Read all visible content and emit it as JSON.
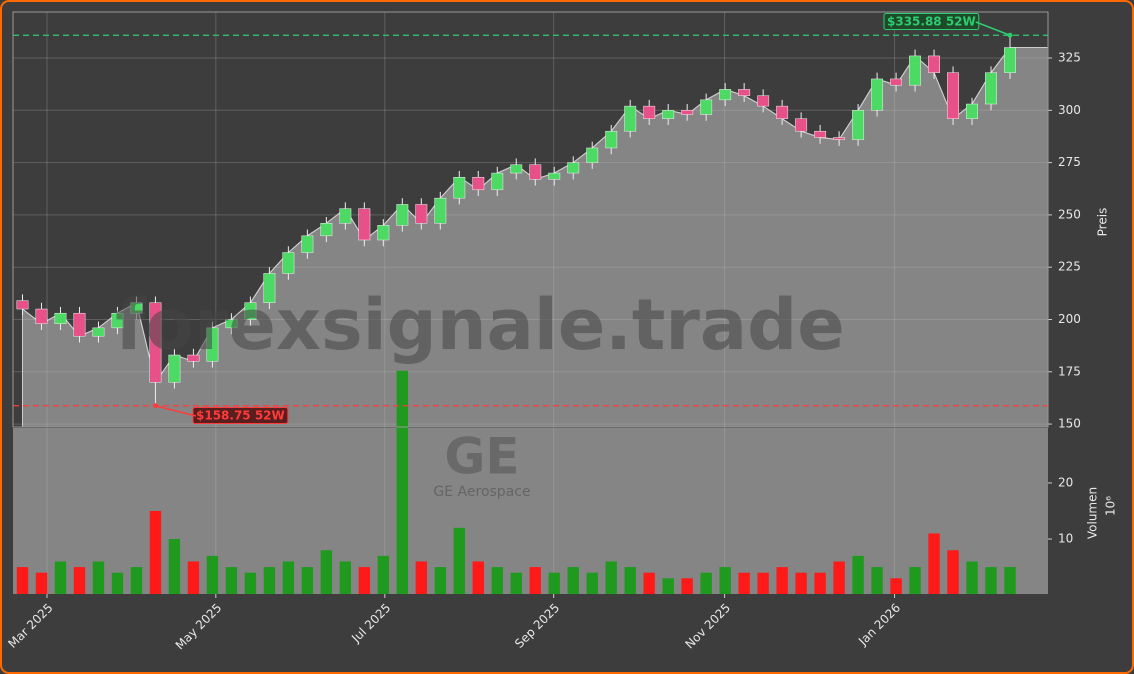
{
  "chart_data": {
    "type": "candlestick",
    "watermark": "forexsignale.trade",
    "ticker": "GE",
    "company": "GE Aerospace",
    "ylabel": "Preis",
    "volume_label": "Volumen",
    "volume_scale_label": "10⁶",
    "x": [
      0,
      1,
      2,
      3,
      4,
      5,
      6,
      7,
      8,
      9,
      10,
      11,
      12,
      13,
      14,
      15,
      16,
      17,
      18,
      19,
      20,
      21,
      22,
      23,
      24,
      25,
      26,
      27,
      28,
      29,
      30,
      31,
      32,
      33,
      34,
      35,
      36,
      37,
      38,
      39,
      40,
      41,
      42,
      43,
      44,
      45,
      46,
      47,
      48,
      49,
      50,
      51,
      52
    ],
    "open": [
      209,
      205,
      198,
      203,
      192,
      196,
      203,
      208,
      170,
      183,
      180,
      196,
      200,
      208,
      222,
      232,
      240,
      246,
      253,
      238,
      245,
      255,
      246,
      258,
      268,
      262,
      270,
      274,
      267,
      270,
      275,
      282,
      290,
      302,
      296,
      300,
      298,
      305,
      310,
      307,
      302,
      296,
      290,
      287,
      286,
      300,
      315,
      312,
      326,
      318,
      296,
      303,
      318
    ],
    "high": [
      212,
      208,
      206,
      206,
      199,
      206,
      211,
      211,
      186,
      186,
      199,
      203,
      211,
      225,
      235,
      243,
      249,
      256,
      256,
      248,
      258,
      258,
      261,
      271,
      271,
      273,
      277,
      277,
      273,
      278,
      285,
      293,
      305,
      305,
      303,
      303,
      308,
      313,
      313,
      310,
      305,
      299,
      293,
      290,
      303,
      318,
      318,
      329,
      329,
      321,
      306,
      321,
      335.88
    ],
    "low": [
      202,
      195,
      195,
      189,
      189,
      193,
      200,
      158.75,
      167,
      177,
      177,
      193,
      197,
      205,
      219,
      229,
      237,
      243,
      235,
      235,
      242,
      243,
      243,
      255,
      259,
      259,
      267,
      264,
      264,
      267,
      272,
      279,
      287,
      293,
      293,
      295,
      295,
      302,
      304,
      299,
      293,
      287,
      284,
      283,
      283,
      297,
      309,
      309,
      315,
      293,
      293,
      300,
      315
    ],
    "close": [
      205,
      198,
      203,
      192,
      196,
      203,
      208,
      170,
      183,
      180,
      196,
      200,
      208,
      222,
      232,
      240,
      246,
      253,
      238,
      245,
      255,
      246,
      258,
      268,
      262,
      270,
      274,
      267,
      270,
      275,
      282,
      290,
      302,
      296,
      300,
      298,
      305,
      310,
      307,
      302,
      296,
      290,
      287,
      286,
      300,
      315,
      312,
      326,
      318,
      296,
      303,
      318,
      330
    ],
    "volume": [
      5,
      4,
      6,
      5,
      6,
      4,
      5,
      15,
      10,
      6,
      7,
      5,
      4,
      5,
      6,
      5,
      8,
      6,
      5,
      7,
      40,
      6,
      5,
      12,
      6,
      5,
      4,
      5,
      4,
      5,
      4,
      6,
      5,
      4,
      3,
      3,
      4,
      5,
      4,
      4,
      5,
      4,
      4,
      6,
      7,
      5,
      3,
      5,
      11,
      8,
      6,
      5,
      5
    ],
    "up_color": "#4cd964",
    "down_color": "#e8508a",
    "volume_up_color": "#1f9a1f",
    "volume_down_color": "#ff1a1a",
    "xlim": [
      -0.5,
      54
    ],
    "xticks": [
      {
        "value": 1.29,
        "label": "Mar 2025"
      },
      {
        "value": 10.18,
        "label": "May 2025"
      },
      {
        "value": 19.08,
        "label": "Jul 2025"
      },
      {
        "value": 27.97,
        "label": "Sep 2025"
      },
      {
        "value": 36.97,
        "label": "Nov 2025"
      },
      {
        "value": 45.92,
        "label": "Jan 2026"
      }
    ],
    "ylim": [
      148.6,
      347
    ],
    "yticks": [
      150,
      175,
      200,
      225,
      250,
      275,
      300,
      325
    ],
    "volume_ylim": [
      0.2,
      29.8
    ],
    "volume_yticks": [
      10,
      20
    ],
    "high_52w": {
      "value": 335.88,
      "label": "$335.88 52W"
    },
    "low_52w": {
      "value": 158.75,
      "label": "$158.75 52W"
    },
    "grid": true
  }
}
